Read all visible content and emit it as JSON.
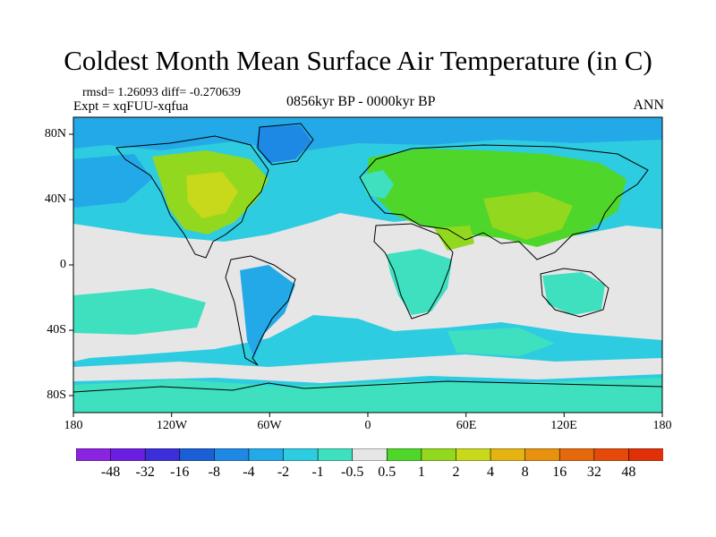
{
  "title": "Coldest Month Mean Surface Air Temperature (in C)",
  "stats_line": "rmsd= 1.26093 diff= -0.270639",
  "experiment_line": "Expt = xqFUU-xqfua",
  "period": "0856kyr BP - 0000kyr BP",
  "season": "ANN",
  "lat_labels": [
    "80N",
    "40N",
    "0",
    "40S",
    "80S"
  ],
  "lon_labels": [
    "180",
    "120W",
    "60W",
    "0",
    "60E",
    "120E",
    "180"
  ],
  "colorbar": {
    "labels": [
      "-48",
      "-32",
      "-16",
      "-8",
      "-4",
      "-2",
      "-1",
      "-0.5",
      "0.5",
      "1",
      "2",
      "4",
      "8",
      "16",
      "32",
      "48"
    ],
    "colors": [
      "#8b24e0",
      "#6a1fe0",
      "#3c2fd9",
      "#1a5fd6",
      "#1e88e5",
      "#24a9e8",
      "#2ecce0",
      "#3ee0c0",
      "#e6e6e6",
      "#4ed62a",
      "#92d81e",
      "#c8d81a",
      "#e3b412",
      "#e8910e",
      "#e6680c",
      "#e54a0a",
      "#e03008"
    ]
  },
  "colors": {
    "neutral": "#e6e6e6",
    "ocean_cool": "#2ecce0",
    "cool_light": "#3ee0c0",
    "cool_mid": "#24a9e8",
    "cool_dark": "#1e88e5",
    "warm": "#4ed62a",
    "warm2": "#92d81e",
    "coast": "#000000"
  }
}
